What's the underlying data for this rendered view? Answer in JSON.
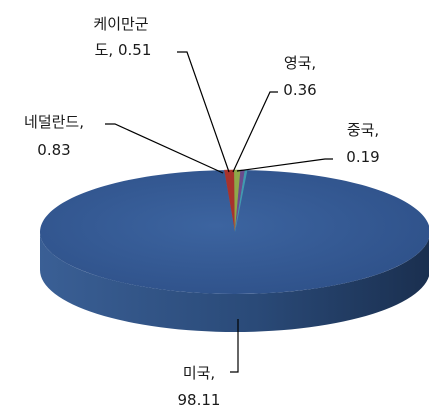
{
  "chart_data": {
    "type": "pie",
    "style": "3d",
    "title": "",
    "slices": [
      {
        "label": "미국",
        "value": 98.11,
        "label_text": "미국,",
        "value_text": "98.11",
        "color": "#2f5590"
      },
      {
        "label": "네덜란드",
        "value": 0.83,
        "label_text": "네덜란드,",
        "value_text": "0.83",
        "color": "#a8332c"
      },
      {
        "label": "케이만군도",
        "value": 0.51,
        "label_text_1": "케이만군",
        "label_text_2": "도,",
        "value_text": "0.51",
        "color": "#8fa84a"
      },
      {
        "label": "영국",
        "value": 0.36,
        "label_text": "영국,",
        "value_text": "0.36",
        "color": "#6a4c8c"
      },
      {
        "label": "중국",
        "value": 0.19,
        "label_text": "중국,",
        "value_text": "0.19",
        "color": "#3f9bb0"
      }
    ]
  }
}
